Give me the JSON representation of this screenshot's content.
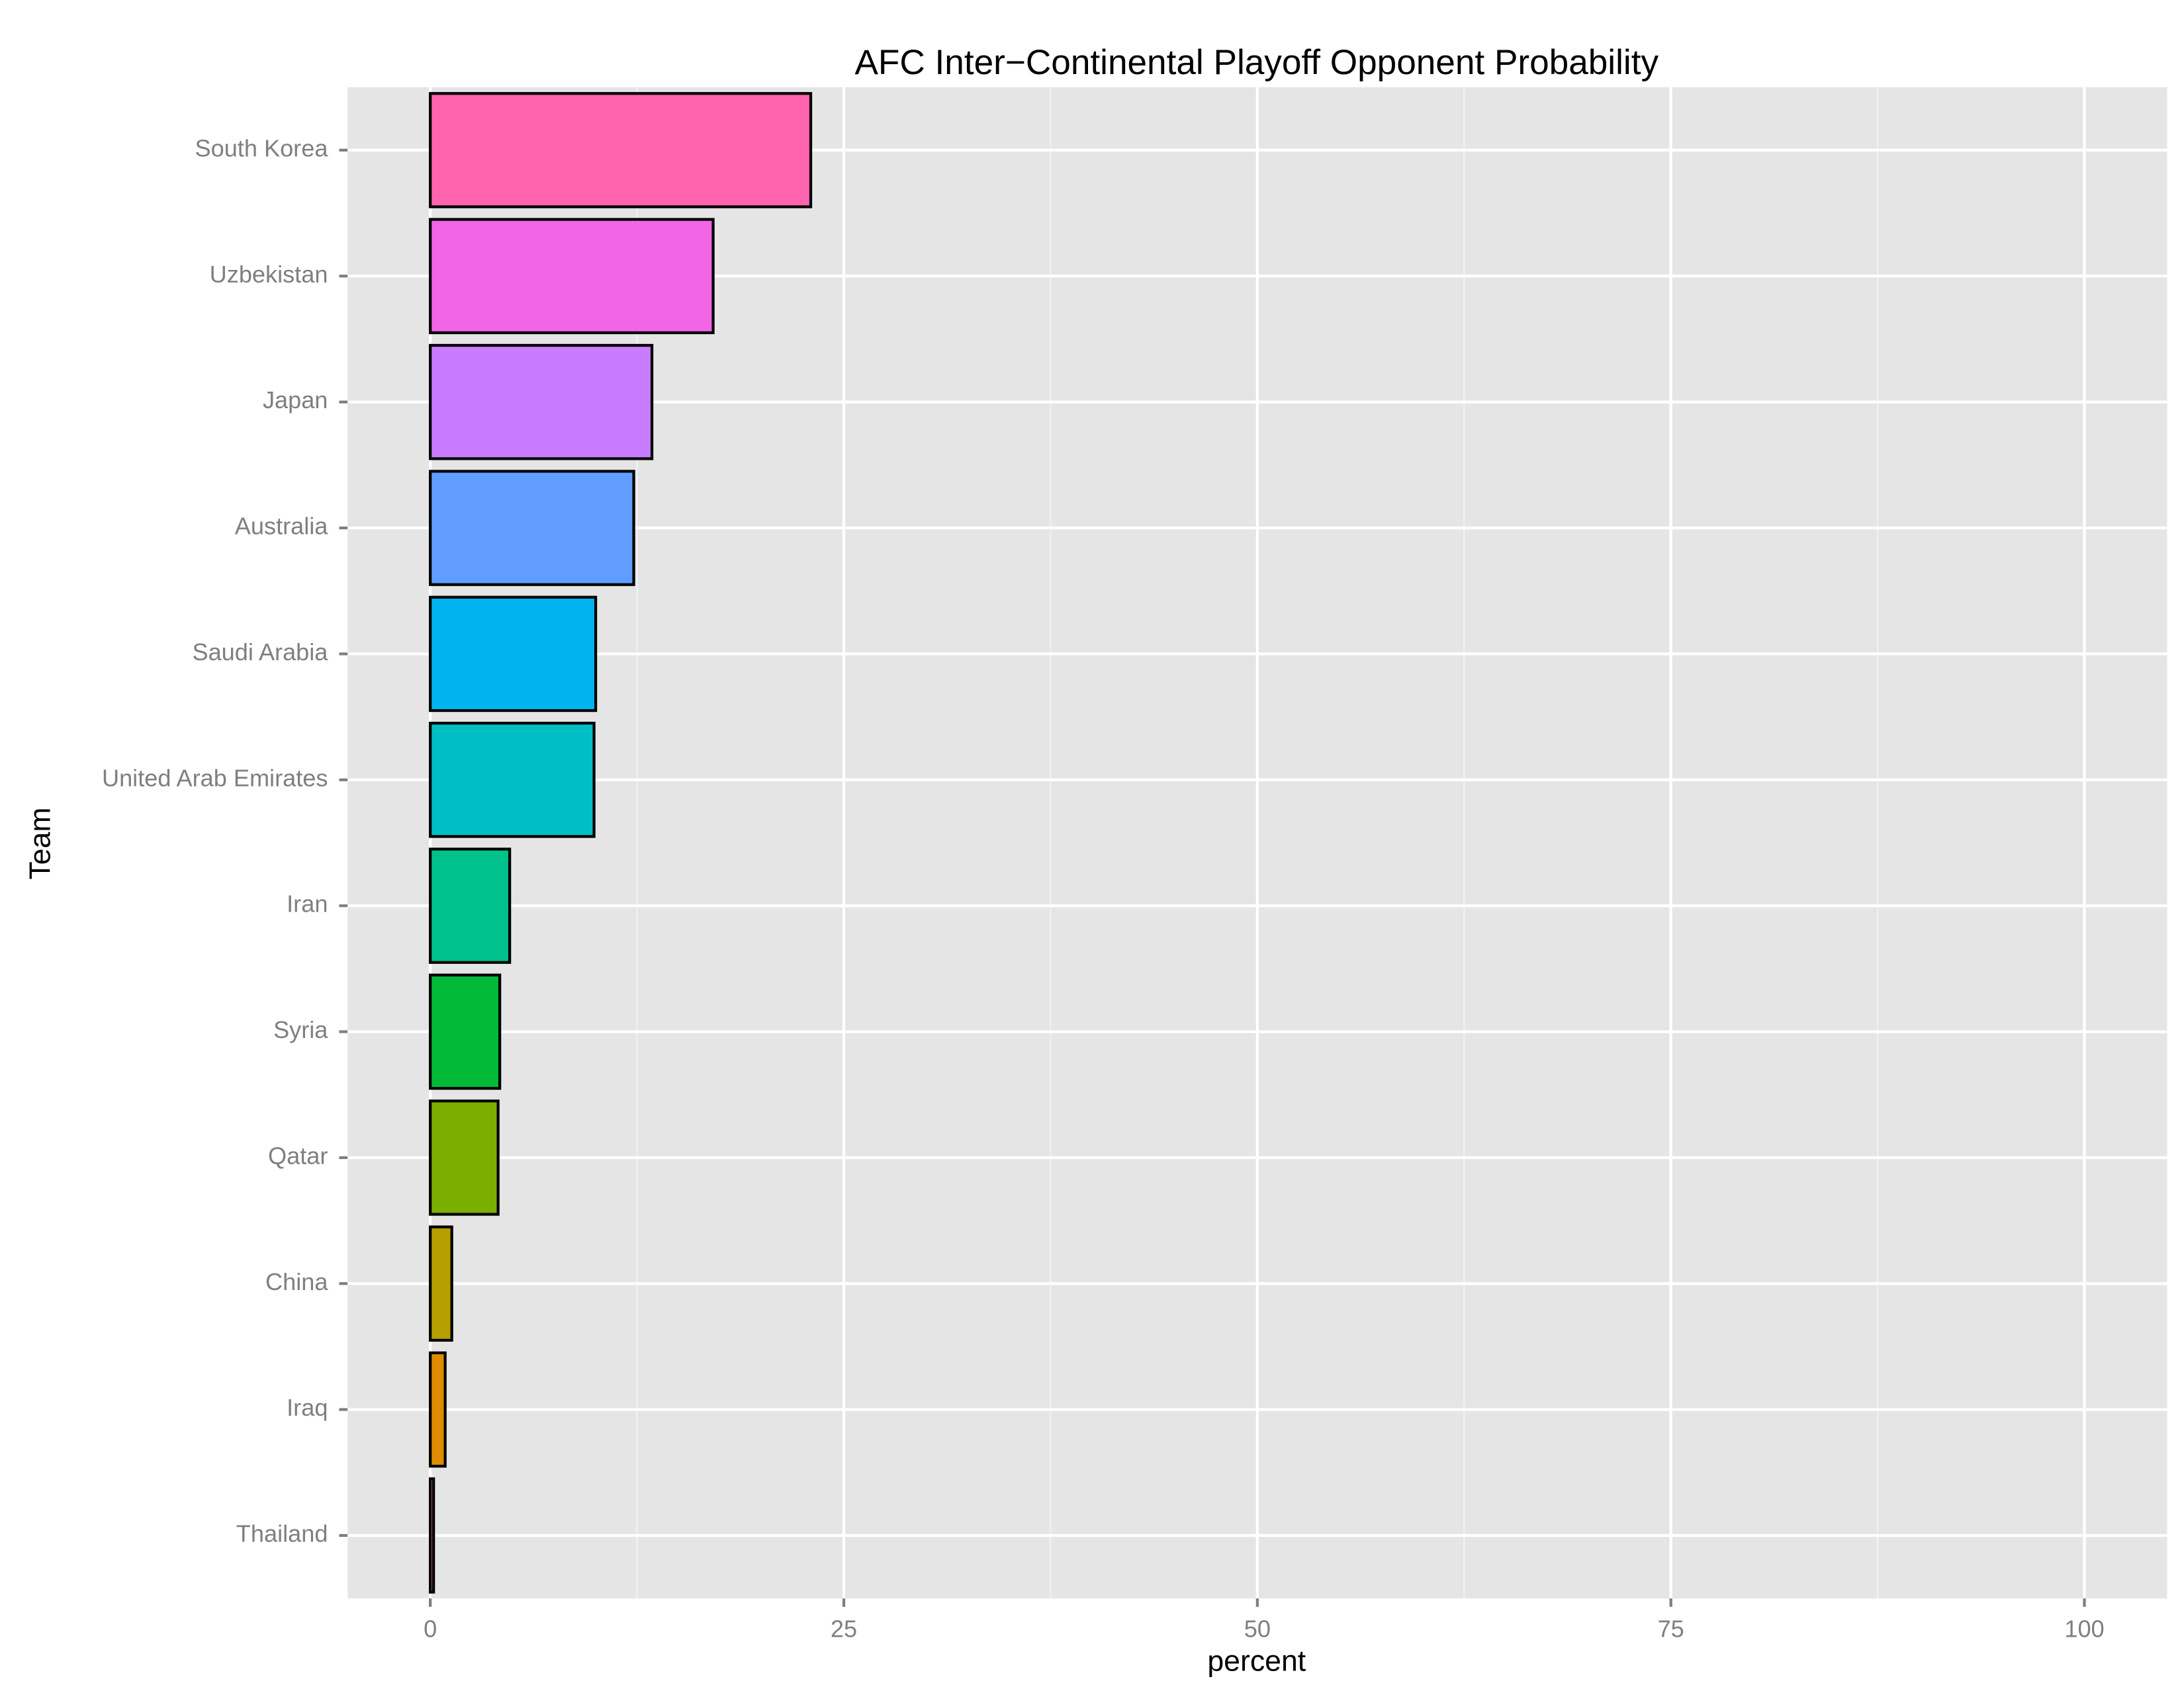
{
  "chart_data": {
    "type": "bar",
    "orientation": "horizontal",
    "title": "AFC Inter−Continental Playoff Opponent Probability",
    "x_label": "percent",
    "y_label": "Team",
    "categories": [
      "South Korea",
      "Uzbekistan",
      "Japan",
      "Australia",
      "Saudi Arabia",
      "United Arab Emirates",
      "Iran",
      "Syria",
      "Qatar",
      "China",
      "Iraq",
      "Thailand"
    ],
    "values": [
      23.0,
      17.1,
      13.4,
      12.3,
      10.0,
      9.9,
      4.8,
      4.2,
      4.1,
      1.3,
      0.9,
      0.2
    ],
    "colors": [
      "#ff64b0",
      "#f265e7",
      "#c77cff",
      "#619cff",
      "#00b4ef",
      "#00bfc4",
      "#00c08b",
      "#00ba38",
      "#7cae00",
      "#b79f00",
      "#de8c00",
      "#f8766d"
    ],
    "xlim": [
      -5,
      105
    ],
    "xticks": [
      0,
      25,
      50,
      75,
      100
    ],
    "grid": true
  }
}
